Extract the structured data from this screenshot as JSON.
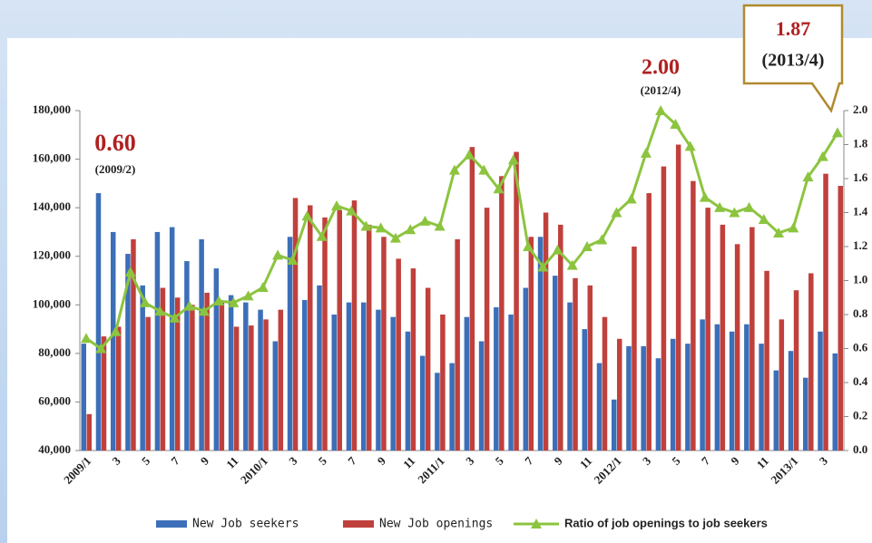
{
  "chart_data": {
    "type": "bar",
    "categories": [
      "2009/1",
      null,
      "3",
      null,
      "5",
      null,
      "7",
      null,
      "9",
      null,
      "11",
      null,
      "2010/1",
      null,
      "3",
      null,
      "5",
      null,
      "7",
      null,
      "9",
      null,
      "11",
      null,
      "2011/1",
      null,
      "3",
      null,
      "5",
      null,
      "7",
      null,
      "9",
      null,
      "11",
      null,
      "2012/1",
      null,
      "3",
      null,
      "5",
      null,
      "7",
      null,
      "9",
      null,
      "11",
      null,
      "2013/1",
      null,
      "3",
      null
    ],
    "series": [
      {
        "name": "New Job seekers",
        "color": "#3d6fb8",
        "values": [
          84000,
          146000,
          130000,
          121000,
          108000,
          130000,
          132000,
          118000,
          127000,
          115000,
          104000,
          101000,
          98000,
          85000,
          128000,
          102000,
          108000,
          96000,
          101000,
          101000,
          98000,
          95000,
          89000,
          79000,
          72000,
          76000,
          95000,
          85000,
          99000,
          96000,
          107000,
          128000,
          112000,
          101000,
          90000,
          76000,
          61000,
          83000,
          83000,
          78000,
          86000,
          84000,
          94000,
          92000,
          89000,
          92000,
          84000,
          73000,
          81000,
          70000,
          89000,
          80000
        ]
      },
      {
        "name": "New Job openings",
        "color": "#c0403c",
        "values": [
          55000,
          87000,
          91000,
          127000,
          95000,
          107000,
          103000,
          100000,
          105000,
          101000,
          91000,
          91500,
          94000,
          98000,
          144000,
          141000,
          136000,
          139000,
          143000,
          133000,
          128000,
          119000,
          115000,
          107000,
          96000,
          127000,
          165000,
          140000,
          153000,
          163000,
          128000,
          138000,
          133000,
          111000,
          108000,
          95000,
          86000,
          124000,
          146000,
          157000,
          166000,
          151000,
          140000,
          133000,
          125000,
          132000,
          114000,
          94000,
          106000,
          113000,
          154000,
          149000
        ]
      },
      {
        "name": "Ratio of job openings to job seekers",
        "color": "#8cc43f",
        "type": "line",
        "axis": "y2",
        "values": [
          0.66,
          0.6,
          0.7,
          1.05,
          0.87,
          0.82,
          0.78,
          0.85,
          0.82,
          0.88,
          0.87,
          0.91,
          0.96,
          1.15,
          1.12,
          1.38,
          1.26,
          1.44,
          1.41,
          1.32,
          1.31,
          1.25,
          1.3,
          1.35,
          1.32,
          1.65,
          1.74,
          1.65,
          1.54,
          1.71,
          1.2,
          1.08,
          1.18,
          1.09,
          1.2,
          1.24,
          1.4,
          1.48,
          1.75,
          2.0,
          1.92,
          1.79,
          1.49,
          1.43,
          1.4,
          1.43,
          1.36,
          1.28,
          1.31,
          1.61,
          1.73,
          1.87
        ]
      }
    ],
    "ylim": [
      40000,
      180000
    ],
    "yticks": [
      {
        "value": 40000,
        "label": "40,000"
      },
      {
        "value": 60000,
        "label": "60,000"
      },
      {
        "value": 80000,
        "label": "80,000"
      },
      {
        "value": 100000,
        "label": "100,000"
      },
      {
        "value": 120000,
        "label": "120,000"
      },
      {
        "value": 140000,
        "label": "140,000"
      },
      {
        "value": 160000,
        "label": "160,000"
      },
      {
        "value": 180000,
        "label": "180,000"
      }
    ],
    "y2lim": [
      0,
      2
    ],
    "y2ticks": [
      {
        "value": 0,
        "label": "0.0"
      },
      {
        "value": 0.2,
        "label": "0.2"
      },
      {
        "value": 0.4,
        "label": "0.4"
      },
      {
        "value": 0.6,
        "label": "0.6"
      },
      {
        "value": 0.8,
        "label": "0.8"
      },
      {
        "value": 1,
        "label": "1.0"
      },
      {
        "value": 1.2,
        "label": "1.2"
      },
      {
        "value": 1.4,
        "label": "1.4"
      },
      {
        "value": 1.6,
        "label": "1.6"
      },
      {
        "value": 1.8,
        "label": "1.8"
      },
      {
        "value": 2,
        "label": "2.0"
      }
    ],
    "annotations": [
      {
        "value": "0.60",
        "date": "(2009/2)"
      },
      {
        "value": "2.00",
        "date": "(2012/4)"
      },
      {
        "value": "1.87",
        "date": "(2013/4)"
      }
    ]
  }
}
